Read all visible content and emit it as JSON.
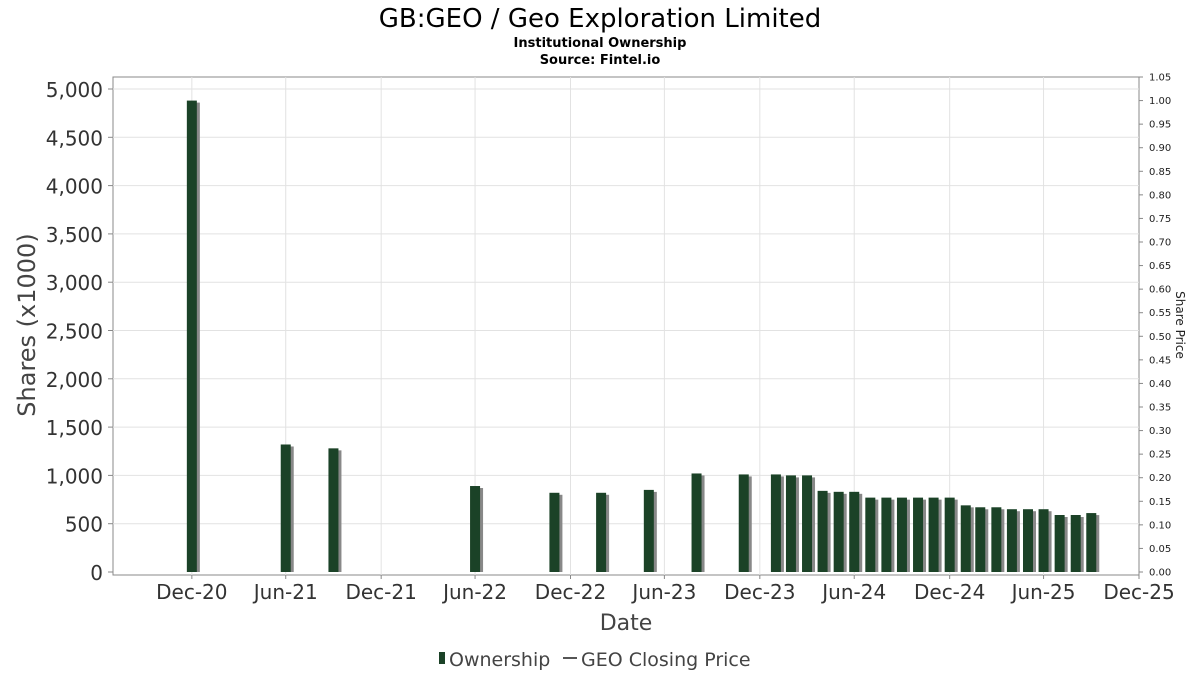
{
  "chart_data": {
    "type": "bar",
    "title": "GB:GEO / Geo Exploration Limited",
    "subtitle_1": "Institutional Ownership",
    "subtitle_2": "Source: Fintel.io",
    "xlabel": "Date",
    "ylabel": "Shares (x1000)",
    "y2label": "Share Price",
    "ylim": [
      0,
      5150
    ],
    "y2lim": [
      0,
      1.05
    ],
    "x_range": [
      "2020-08-01",
      "2025-12-31"
    ],
    "grid": true,
    "legend_position": "bottom-center",
    "x_ticks": [
      {
        "date": "2020-12-31",
        "label": "Dec-20"
      },
      {
        "date": "2021-06-30",
        "label": "Jun-21"
      },
      {
        "date": "2021-12-31",
        "label": "Dec-21"
      },
      {
        "date": "2022-06-30",
        "label": "Jun-22"
      },
      {
        "date": "2022-12-31",
        "label": "Dec-22"
      },
      {
        "date": "2023-06-30",
        "label": "Jun-23"
      },
      {
        "date": "2023-12-31",
        "label": "Dec-23"
      },
      {
        "date": "2024-06-30",
        "label": "Jun-24"
      },
      {
        "date": "2024-12-31",
        "label": "Dec-24"
      },
      {
        "date": "2025-06-30",
        "label": "Jun-25"
      },
      {
        "date": "2025-12-31",
        "label": "Dec-25"
      }
    ],
    "y_ticks": [
      {
        "value": 0,
        "label": "0"
      },
      {
        "value": 500,
        "label": "500"
      },
      {
        "value": 1000,
        "label": "1,000"
      },
      {
        "value": 1500,
        "label": "1,500"
      },
      {
        "value": 2000,
        "label": "2,000"
      },
      {
        "value": 2500,
        "label": "2,500"
      },
      {
        "value": 3000,
        "label": "3,000"
      },
      {
        "value": 3500,
        "label": "3,500"
      },
      {
        "value": 4000,
        "label": "4,000"
      },
      {
        "value": 4500,
        "label": "4,500"
      },
      {
        "value": 5000,
        "label": "5,000"
      }
    ],
    "y2_ticks": [
      {
        "value": 0.0,
        "label": "0.00"
      },
      {
        "value": 0.05,
        "label": "0.05"
      },
      {
        "value": 0.1,
        "label": "0.10"
      },
      {
        "value": 0.15,
        "label": "0.15"
      },
      {
        "value": 0.2,
        "label": "0.20"
      },
      {
        "value": 0.25,
        "label": "0.25"
      },
      {
        "value": 0.3,
        "label": "0.30"
      },
      {
        "value": 0.35,
        "label": "0.35"
      },
      {
        "value": 0.4,
        "label": "0.40"
      },
      {
        "value": 0.45,
        "label": "0.45"
      },
      {
        "value": 0.5,
        "label": "0.50"
      },
      {
        "value": 0.55,
        "label": "0.55"
      },
      {
        "value": 0.6,
        "label": "0.60"
      },
      {
        "value": 0.65,
        "label": "0.65"
      },
      {
        "value": 0.7,
        "label": "0.70"
      },
      {
        "value": 0.75,
        "label": "0.75"
      },
      {
        "value": 0.8,
        "label": "0.80"
      },
      {
        "value": 0.85,
        "label": "0.85"
      },
      {
        "value": 0.9,
        "label": "0.90"
      },
      {
        "value": 0.95,
        "label": "0.95"
      },
      {
        "value": 1.0,
        "label": "1.00"
      },
      {
        "value": 1.05,
        "label": "1.05"
      }
    ],
    "series": [
      {
        "name": "Ownership",
        "color": "#1b4227",
        "shadow_color": "#888888",
        "x": [
          "2020-12-31",
          "2021-06-30",
          "2021-09-30",
          "2022-06-30",
          "2022-11-30",
          "2023-02-28",
          "2023-05-31",
          "2023-08-31",
          "2023-11-30",
          "2024-01-31",
          "2024-02-29",
          "2024-03-31",
          "2024-04-30",
          "2024-05-31",
          "2024-06-30",
          "2024-07-31",
          "2024-08-31",
          "2024-09-30",
          "2024-10-31",
          "2024-11-30",
          "2024-12-31",
          "2025-01-31",
          "2025-02-28",
          "2025-03-31",
          "2025-04-30",
          "2025-05-31",
          "2025-06-30",
          "2025-07-31",
          "2025-08-31",
          "2025-09-30"
        ],
        "values": [
          4880,
          1320,
          1280,
          890,
          820,
          820,
          850,
          1020,
          1010,
          1010,
          1000,
          1000,
          840,
          830,
          830,
          770,
          770,
          770,
          770,
          770,
          770,
          690,
          670,
          670,
          650,
          650,
          650,
          590,
          590,
          610
        ]
      },
      {
        "name": "GEO Closing Price",
        "color": "#555555",
        "values": []
      }
    ]
  }
}
